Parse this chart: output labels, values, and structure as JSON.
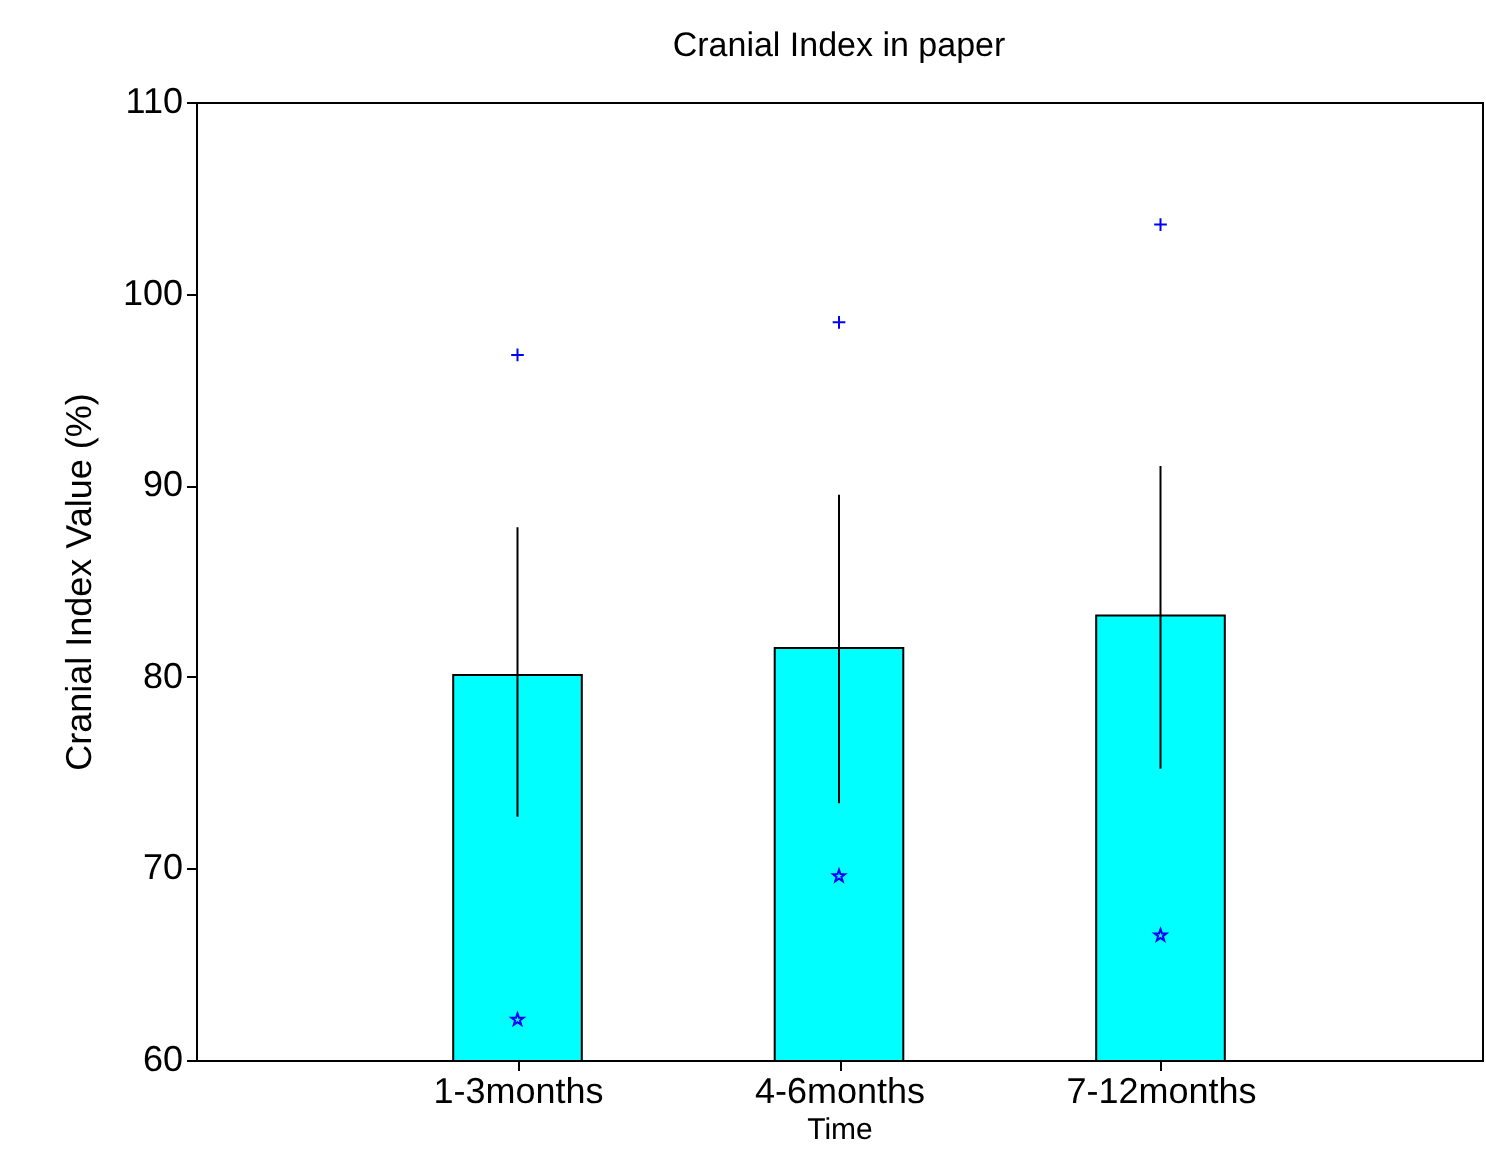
{
  "chart_data": {
    "type": "bar",
    "title": "Cranial Index in paper",
    "xlabel": "Time",
    "ylabel": "Cranial Index Value (%)",
    "categories": [
      "1-3months",
      "4-6months",
      "7-12months"
    ],
    "series": [
      {
        "color": "#00ffff",
        "values": [
          80.1,
          81.5,
          83.2
        ],
        "errors": [
          [
            72.7,
            87.8
          ],
          [
            73.4,
            89.5
          ],
          [
            75.2,
            91.0
          ]
        ]
      },
      {
        "type": "scatter",
        "marker": "cross",
        "color": "#0000ff",
        "x": [
          "1-3months",
          "4-6months",
          "7-12months"
        ],
        "values": [
          96.8,
          98.5,
          103.6
        ]
      },
      {
        "type": "scatter",
        "marker": "star",
        "color": "#0000ff",
        "x": [
          "1-3months",
          "4-6months",
          "7-12months"
        ],
        "values": [
          62.1,
          69.6,
          66.5
        ]
      }
    ],
    "ylim": [
      60,
      110
    ],
    "yticks": [
      60,
      70,
      80,
      90,
      100,
      110
    ]
  }
}
